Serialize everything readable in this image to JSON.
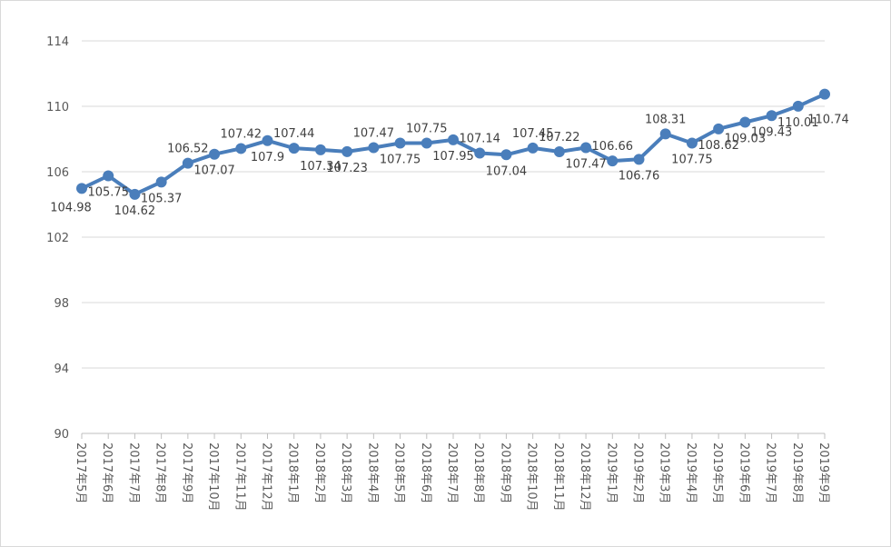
{
  "chart_data": {
    "type": "line",
    "title": "",
    "xlabel": "",
    "ylabel": "",
    "ylim": [
      90,
      114
    ],
    "yticks": [
      "90",
      "94",
      "98",
      "102",
      "106",
      "110",
      "114"
    ],
    "grid": true,
    "legend": "none",
    "colors": {
      "line": "#4a7ebb",
      "marker": "#4a7ebb",
      "grid": "#d9d9d9",
      "axis": "#bfbfbf",
      "text": "#595959"
    },
    "categories": [
      "2017年5月",
      "2017年6月",
      "2017年7月",
      "2017年8月",
      "2017年9月",
      "2017年10月",
      "2017年11月",
      "2017年12月",
      "2018年1月",
      "2018年2月",
      "2018年3月",
      "2018年4月",
      "2018年5月",
      "2018年6月",
      "2018年7月",
      "2018年8月",
      "2018年9月",
      "2018年10月",
      "2018年11月",
      "2018年12月",
      "2019年1月",
      "2019年2月",
      "2019年3月",
      "2019年4月",
      "2019年5月",
      "2019年6月",
      "2019年7月",
      "2019年8月",
      "2019年9月"
    ],
    "series": [
      {
        "values": [
          104.98,
          105.75,
          104.62,
          105.37,
          106.52,
          107.07,
          107.42,
          107.9,
          107.44,
          107.34,
          107.23,
          107.47,
          107.75,
          107.75,
          107.95,
          107.14,
          107.04,
          107.45,
          107.22,
          107.47,
          106.66,
          106.76,
          108.31,
          107.75,
          108.62,
          109.03,
          109.43,
          110.01,
          110.74
        ]
      }
    ],
    "data_labels": [
      "104.98",
      "105.75",
      "104.62",
      "105.37",
      "106.52",
      "107.07",
      "107.42",
      "107.9",
      "107.44",
      "107.34",
      "107.23",
      "107.47",
      "107.75",
      "107.75",
      "107.95",
      "107.14",
      "107.04",
      "107.45",
      "107.22",
      "107.47",
      "106.66",
      "106.76",
      "108.31",
      "107.75",
      "108.62",
      "109.03",
      "109.43",
      "110.01",
      "110.74"
    ]
  }
}
